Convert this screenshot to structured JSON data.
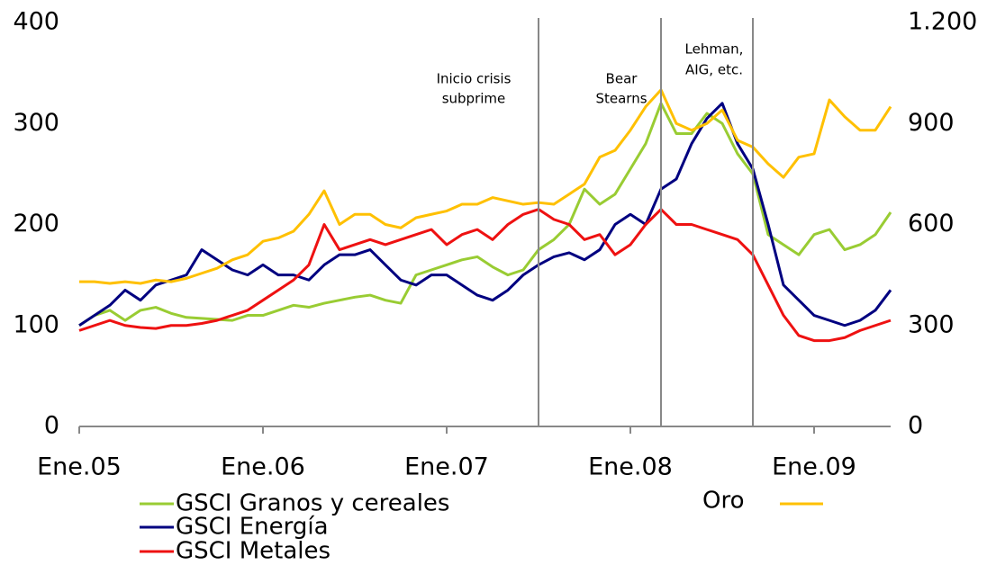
{
  "chart_data": {
    "type": "line",
    "categories": [
      "Ene.05",
      null,
      null,
      null,
      null,
      null,
      null,
      null,
      null,
      null,
      null,
      null,
      "Ene.06",
      null,
      null,
      null,
      null,
      null,
      null,
      null,
      null,
      null,
      null,
      null,
      "Ene.07",
      null,
      null,
      null,
      null,
      null,
      null,
      null,
      null,
      null,
      null,
      null,
      "Ene.08",
      null,
      null,
      null,
      null,
      null,
      null,
      null,
      null,
      null,
      null,
      null,
      "Ene.09",
      null,
      null,
      null,
      null,
      null
    ],
    "series": [
      {
        "name": "GSCI Granos y cereales",
        "color": "#99cc33",
        "values": [
          100,
          110,
          115,
          105,
          115,
          118,
          112,
          108,
          107,
          106,
          105,
          110,
          110,
          115,
          120,
          118,
          122,
          125,
          128,
          130,
          125,
          122,
          150,
          155,
          160,
          165,
          168,
          158,
          150,
          155,
          175,
          185,
          200,
          235,
          220,
          230,
          255,
          280,
          320,
          290,
          290,
          310,
          300,
          270,
          250,
          190,
          180,
          170,
          190,
          195,
          175,
          180,
          190,
          212
        ]
      },
      {
        "name": "GSCI Energía",
        "color": "#000080",
        "values": [
          100,
          110,
          120,
          135,
          125,
          140,
          145,
          150,
          175,
          165,
          155,
          150,
          160,
          150,
          150,
          145,
          160,
          170,
          170,
          175,
          160,
          145,
          140,
          150,
          150,
          140,
          130,
          125,
          135,
          150,
          160,
          168,
          172,
          165,
          175,
          200,
          210,
          200,
          235,
          245,
          280,
          305,
          320,
          280,
          255,
          200,
          140,
          125,
          110,
          105,
          100,
          105,
          115,
          135
        ]
      },
      {
        "name": "GSCI Metales",
        "color": "#ee1111",
        "values": [
          95,
          100,
          105,
          100,
          98,
          97,
          100,
          100,
          102,
          105,
          110,
          115,
          125,
          135,
          145,
          160,
          200,
          175,
          180,
          185,
          180,
          185,
          190,
          195,
          180,
          190,
          195,
          185,
          200,
          210,
          215,
          205,
          200,
          185,
          190,
          170,
          180,
          200,
          215,
          200,
          200,
          195,
          190,
          185,
          170,
          140,
          110,
          90,
          85,
          85,
          88,
          95,
          100,
          105
        ]
      },
      {
        "name": "Oro",
        "color": "#ffc000",
        "axis": "y2",
        "values": [
          430,
          430,
          425,
          430,
          425,
          435,
          430,
          440,
          455,
          470,
          495,
          510,
          550,
          560,
          580,
          630,
          700,
          600,
          630,
          630,
          600,
          590,
          620,
          630,
          640,
          660,
          660,
          680,
          670,
          660,
          665,
          660,
          690,
          720,
          800,
          820,
          880,
          950,
          1000,
          900,
          880,
          900,
          940,
          850,
          830,
          780,
          740,
          800,
          810,
          970,
          920,
          880,
          880,
          950
        ]
      }
    ],
    "ylim": [
      0,
      400
    ],
    "yticks": [
      0,
      100,
      200,
      300,
      400
    ],
    "y2lim": [
      0,
      1200
    ],
    "y2ticks": [
      0,
      300,
      600,
      900,
      {
        "value": 1200,
        "label": "1.200"
      }
    ],
    "annotations": [
      {
        "label": [
          "Inicio crisis",
          "subprime"
        ],
        "x": 30
      },
      {
        "label": [
          "Bear",
          "Stearns"
        ],
        "x": 38
      },
      {
        "label": [
          "Lehman,",
          "AIG, etc."
        ],
        "x": 44
      }
    ],
    "grid": false
  }
}
